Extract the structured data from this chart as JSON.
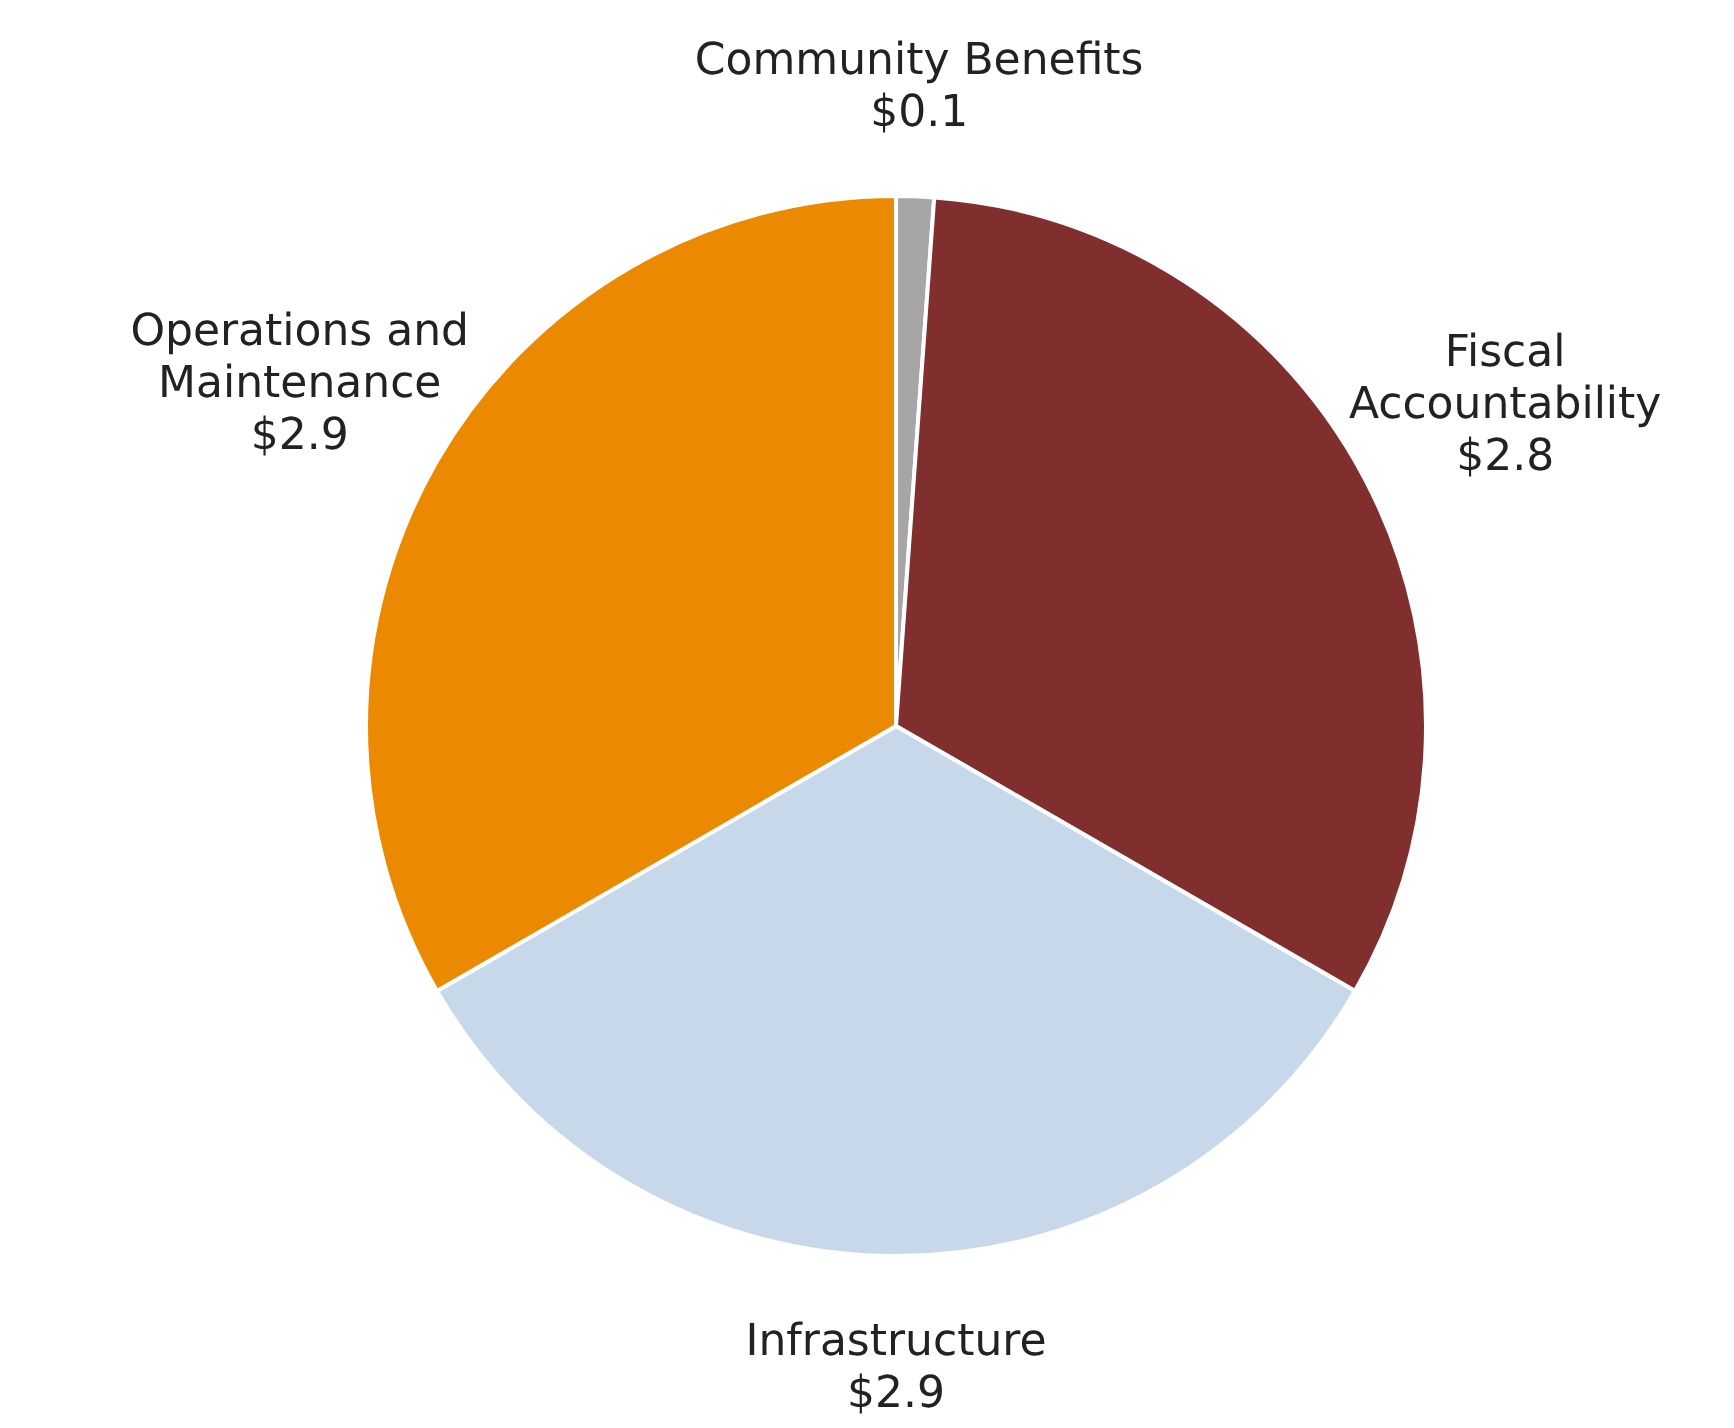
{
  "chart_data": {
    "type": "pie",
    "categories": [
      "Community Benefits",
      "Fiscal Accountability",
      "Infrastructure",
      "Operations and Maintenance"
    ],
    "values": [
      0.1,
      2.8,
      2.9,
      2.9
    ],
    "value_labels": [
      "$0.1",
      "$2.8",
      "$2.9",
      "$2.9"
    ],
    "colors": [
      "#a6a6a6",
      "#812e2e",
      "#c7d8ea",
      "#eb8a00"
    ],
    "legend": false
  }
}
